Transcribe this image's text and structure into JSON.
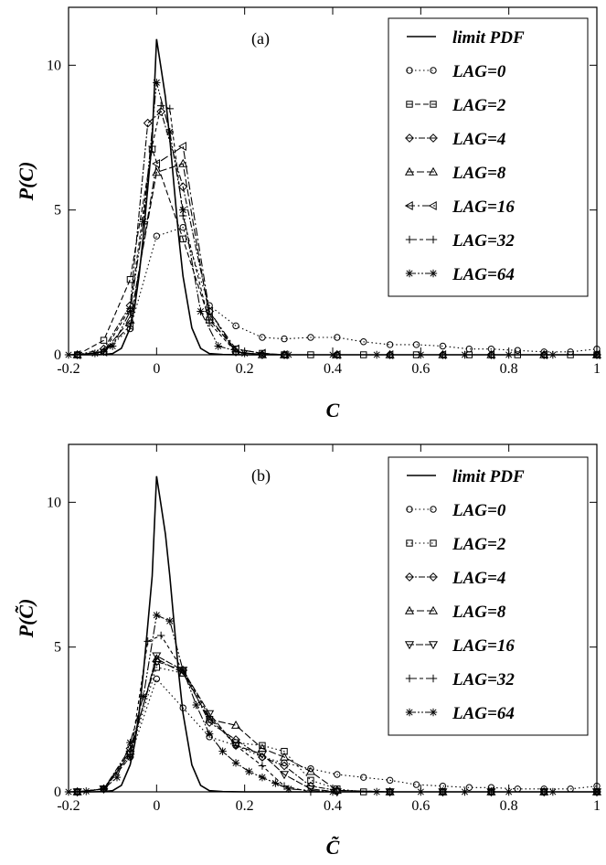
{
  "chart_data": [
    {
      "type": "line",
      "panel_label": "(a)",
      "xlabel": "C",
      "ylabel": "P(C)",
      "xlim": [
        -0.2,
        1.0
      ],
      "ylim": [
        0,
        12
      ],
      "xticks": [
        "-0.2",
        "0",
        "0.2",
        "0.4",
        "0.6",
        "0.8",
        "1"
      ],
      "xtick_values": [
        -0.2,
        0,
        0.2,
        0.4,
        0.6,
        0.8,
        1.0
      ],
      "yticks": [
        "0",
        "5",
        "10"
      ],
      "ytick_values": [
        0,
        5,
        10
      ],
      "grid": false,
      "legend_position": "top-right",
      "series": [
        {
          "name": "limit PDF",
          "marker": "none",
          "dash": "solid",
          "x": [
            -0.2,
            -0.15,
            -0.12,
            -0.1,
            -0.08,
            -0.06,
            -0.05,
            -0.04,
            -0.03,
            -0.02,
            -0.01,
            0,
            0.01,
            0.02,
            0.03,
            0.04,
            0.05,
            0.06,
            0.08,
            0.1,
            0.12,
            0.15,
            0.2,
            0.3,
            0.5,
            1.0
          ],
          "y": [
            0,
            0,
            0.01,
            0.04,
            0.22,
            0.93,
            1.65,
            2.72,
            4.12,
            5.77,
            7.45,
            10.9,
            9.9,
            8.9,
            7.45,
            5.77,
            4.12,
            2.72,
            0.93,
            0.22,
            0.04,
            0.01,
            0,
            0,
            0,
            0
          ]
        },
        {
          "name": "LAG=0",
          "marker": "circle",
          "dash": "1.5,3",
          "x": [
            -0.18,
            -0.12,
            -0.06,
            0,
            0.06,
            0.12,
            0.18,
            0.24,
            0.29,
            0.35,
            0.41,
            0.47,
            0.53,
            0.59,
            0.65,
            0.71,
            0.76,
            0.82,
            0.88,
            0.94,
            1.0
          ],
          "y": [
            0,
            0.1,
            0.9,
            4.1,
            4.4,
            1.7,
            1.0,
            0.6,
            0.55,
            0.6,
            0.6,
            0.45,
            0.35,
            0.35,
            0.3,
            0.2,
            0.2,
            0.15,
            0.1,
            0.1,
            0.2
          ]
        },
        {
          "name": "LAG=2",
          "marker": "square",
          "dash": "6,3",
          "x": [
            -0.18,
            -0.12,
            -0.06,
            -0.01,
            0.06,
            0.12,
            0.18,
            0.24,
            0.29,
            0.35,
            0.47,
            0.59,
            0.71,
            0.82,
            0.94,
            1.0
          ],
          "y": [
            0,
            0.5,
            2.6,
            7.1,
            4.0,
            1.2,
            0.2,
            0.05,
            0,
            0,
            0,
            0,
            0,
            0,
            0,
            0
          ]
        },
        {
          "name": "LAG=4",
          "marker": "diamond",
          "dash": "7,2,2,2",
          "x": [
            -0.18,
            -0.12,
            -0.06,
            -0.02,
            0.01,
            0.06,
            0.12,
            0.18,
            0.24,
            0.29,
            0.41,
            0.53,
            0.65,
            0.76,
            0.88,
            1.0
          ],
          "y": [
            0,
            0.2,
            1.7,
            8.0,
            8.4,
            5.8,
            1.5,
            0.1,
            0,
            0,
            0,
            0,
            0,
            0,
            0,
            0
          ]
        },
        {
          "name": "LAG=8",
          "marker": "triangle-up",
          "dash": "8,3",
          "x": [
            -0.18,
            -0.12,
            -0.06,
            0,
            0.06,
            0.12,
            0.18,
            0.24,
            0.29,
            0.41,
            0.53,
            0.65,
            0.76,
            0.88,
            1.0
          ],
          "y": [
            0,
            0.1,
            1.2,
            6.3,
            6.6,
            1.3,
            0.1,
            0,
            0,
            0,
            0,
            0,
            0,
            0,
            0
          ]
        },
        {
          "name": "LAG=16",
          "marker": "triangle-left",
          "dash": "9,3,2,3",
          "x": [
            -0.18,
            -0.12,
            -0.06,
            0,
            0.06,
            0.12,
            0.18,
            0.24,
            0.29,
            0.41,
            0.53,
            0.65,
            0.76,
            0.88,
            1.0
          ],
          "y": [
            0,
            0.1,
            1.0,
            6.6,
            7.2,
            1.5,
            0.2,
            0.05,
            0,
            0,
            0,
            0,
            0,
            0,
            0
          ]
        },
        {
          "name": "LAG=32",
          "marker": "plus",
          "dash": "4,3",
          "x": [
            -0.18,
            -0.12,
            -0.06,
            -0.01,
            0.01,
            0.03,
            0.06,
            0.12,
            0.18,
            0.24,
            0.29,
            0.41,
            0.53,
            0.65,
            0.76,
            0.88,
            1.0
          ],
          "y": [
            0,
            0.1,
            1.6,
            7.2,
            8.6,
            8.5,
            4.8,
            1.1,
            0.1,
            0,
            0,
            0,
            0,
            0,
            0,
            0,
            0
          ]
        },
        {
          "name": "LAG=64",
          "marker": "star",
          "dash": "10,2,2,2,2,2",
          "x": [
            -0.2,
            -0.14,
            -0.1,
            -0.06,
            -0.03,
            0,
            0.03,
            0.06,
            0.1,
            0.14,
            0.2,
            0.3,
            0.4,
            0.5,
            0.6,
            0.7,
            0.8,
            0.9,
            1.0
          ],
          "y": [
            0,
            0.05,
            0.3,
            1.5,
            4.6,
            9.4,
            7.7,
            5.0,
            1.5,
            0.3,
            0.05,
            0,
            0,
            0,
            0,
            0,
            0,
            0,
            0
          ]
        }
      ]
    },
    {
      "type": "line",
      "panel_label": "(b)",
      "xlabel": "C̃",
      "ylabel": "P(C̃)",
      "xlim": [
        -0.2,
        1.0
      ],
      "ylim": [
        0,
        12
      ],
      "xticks": [
        "-0.2",
        "0",
        "0.2",
        "0.4",
        "0.6",
        "0.8",
        "1"
      ],
      "xtick_values": [
        -0.2,
        0,
        0.2,
        0.4,
        0.6,
        0.8,
        1.0
      ],
      "yticks": [
        "0",
        "5",
        "10"
      ],
      "ytick_values": [
        0,
        5,
        10
      ],
      "grid": false,
      "legend_position": "top-right",
      "series": [
        {
          "name": "limit PDF",
          "marker": "none",
          "dash": "solid",
          "x": [
            -0.2,
            -0.15,
            -0.12,
            -0.1,
            -0.08,
            -0.06,
            -0.05,
            -0.04,
            -0.03,
            -0.02,
            -0.01,
            0,
            0.01,
            0.02,
            0.03,
            0.04,
            0.05,
            0.06,
            0.08,
            0.1,
            0.12,
            0.15,
            0.2,
            0.3,
            0.5,
            1.0
          ],
          "y": [
            0,
            0,
            0.01,
            0.04,
            0.22,
            0.93,
            1.65,
            2.72,
            4.12,
            5.77,
            7.45,
            10.9,
            9.9,
            8.9,
            7.45,
            5.77,
            4.12,
            2.72,
            0.93,
            0.22,
            0.04,
            0.01,
            0,
            0,
            0,
            0
          ]
        },
        {
          "name": "LAG=0",
          "marker": "circle",
          "dash": "1.5,3",
          "x": [
            -0.18,
            -0.12,
            -0.06,
            0,
            0.06,
            0.12,
            0.18,
            0.24,
            0.29,
            0.35,
            0.41,
            0.47,
            0.53,
            0.59,
            0.65,
            0.71,
            0.76,
            0.82,
            0.88,
            0.94,
            1.0
          ],
          "y": [
            0,
            0.1,
            1.2,
            3.9,
            2.9,
            1.9,
            1.6,
            1.2,
            1.0,
            0.8,
            0.6,
            0.5,
            0.4,
            0.25,
            0.2,
            0.15,
            0.15,
            0.1,
            0.1,
            0.1,
            0.2
          ]
        },
        {
          "name": "LAG=2",
          "marker": "square",
          "dash": "1.5,3",
          "x": [
            -0.18,
            -0.12,
            -0.06,
            0,
            0.06,
            0.12,
            0.18,
            0.24,
            0.29,
            0.35,
            0.41,
            0.47,
            0.53,
            0.65,
            0.76,
            0.88,
            1.0
          ],
          "y": [
            0,
            0.1,
            1.3,
            4.3,
            4.1,
            2.5,
            1.7,
            1.6,
            1.4,
            0.4,
            0.1,
            0,
            0,
            0,
            0,
            0,
            0
          ]
        },
        {
          "name": "LAG=4",
          "marker": "diamond",
          "dash": "7,2,2,2",
          "x": [
            -0.18,
            -0.12,
            -0.06,
            0,
            0.06,
            0.12,
            0.18,
            0.24,
            0.29,
            0.35,
            0.41,
            0.53,
            0.65,
            0.76,
            0.88,
            1.0
          ],
          "y": [
            0,
            0.1,
            1.5,
            4.5,
            4.2,
            2.4,
            1.8,
            1.2,
            0.9,
            0.2,
            0.05,
            0,
            0,
            0,
            0,
            0
          ]
        },
        {
          "name": "LAG=8",
          "marker": "triangle-up",
          "dash": "8,3",
          "x": [
            -0.18,
            -0.12,
            -0.06,
            0,
            0.06,
            0.12,
            0.18,
            0.24,
            0.29,
            0.35,
            0.41,
            0.53,
            0.65,
            0.76,
            0.88,
            1.0
          ],
          "y": [
            0,
            0.1,
            1.4,
            4.6,
            4.1,
            2.5,
            2.3,
            1.5,
            1.2,
            0.7,
            0.05,
            0,
            0,
            0,
            0,
            0
          ]
        },
        {
          "name": "LAG=16",
          "marker": "triangle-down",
          "dash": "8,2",
          "x": [
            -0.18,
            -0.12,
            -0.06,
            0,
            0.06,
            0.12,
            0.18,
            0.24,
            0.29,
            0.35,
            0.41,
            0.53,
            0.65,
            0.76,
            0.88,
            1.0
          ],
          "y": [
            0,
            0.1,
            1.3,
            4.7,
            4.2,
            2.7,
            1.6,
            1.3,
            0.6,
            0.1,
            0,
            0,
            0,
            0,
            0,
            0
          ]
        },
        {
          "name": "LAG=32",
          "marker": "plus",
          "dash": "4,3",
          "x": [
            -0.18,
            -0.12,
            -0.06,
            -0.02,
            0.01,
            0.06,
            0.12,
            0.18,
            0.24,
            0.29,
            0.35,
            0.41,
            0.53,
            0.65,
            0.76,
            0.88,
            1.0
          ],
          "y": [
            0,
            0.1,
            1.2,
            5.2,
            5.4,
            4.2,
            2.6,
            1.6,
            0.9,
            0.2,
            0,
            0,
            0,
            0,
            0,
            0,
            0
          ]
        },
        {
          "name": "LAG=64",
          "marker": "star",
          "dash": "10,2,2,2,2,2",
          "x": [
            -0.2,
            -0.16,
            -0.12,
            -0.09,
            -0.06,
            -0.03,
            0,
            0.03,
            0.06,
            0.09,
            0.12,
            0.15,
            0.18,
            0.21,
            0.24,
            0.27,
            0.3,
            0.4,
            0.5,
            0.6,
            0.7,
            0.8,
            0.9,
            1.0
          ],
          "y": [
            0,
            0.02,
            0.1,
            0.5,
            1.7,
            3.3,
            6.1,
            5.9,
            4.2,
            3.0,
            2.0,
            1.4,
            1.0,
            0.7,
            0.5,
            0.3,
            0.1,
            0,
            0,
            0,
            0,
            0,
            0,
            0
          ]
        }
      ]
    }
  ]
}
